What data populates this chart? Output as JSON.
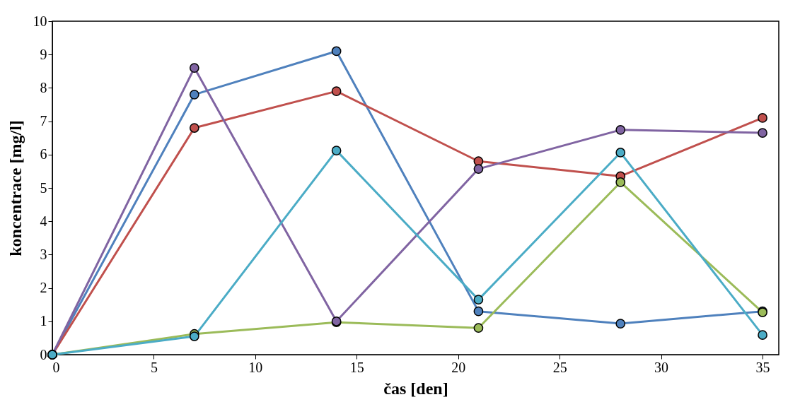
{
  "chart_data": {
    "type": "line",
    "xlabel": "čas [den]",
    "ylabel": "koncentrace [mg/l]",
    "x": [
      0,
      7,
      14,
      21,
      28,
      35
    ],
    "series": [
      {
        "color": "#4f81bd",
        "values": [
          0,
          7.8,
          9.1,
          1.3,
          0.93,
          1.3
        ]
      },
      {
        "color": "#c0504d",
        "values": [
          0,
          6.8,
          7.9,
          5.8,
          5.35,
          7.1
        ]
      },
      {
        "color": "#9bbb59",
        "values": [
          0,
          0.62,
          0.97,
          0.8,
          5.17,
          1.27
        ]
      },
      {
        "color": "#8064a2",
        "values": [
          0,
          8.6,
          1.0,
          5.57,
          6.74,
          6.65
        ]
      },
      {
        "color": "#4bacc6",
        "values": [
          0,
          0.55,
          6.12,
          1.65,
          6.06,
          0.59
        ]
      }
    ],
    "xlim": [
      0,
      35.8
    ],
    "xticks": [
      0,
      5,
      10,
      15,
      20,
      25,
      30,
      35
    ],
    "ylim": [
      0,
      10
    ],
    "yticks": [
      0,
      1,
      2,
      3,
      4,
      5,
      6,
      7,
      8,
      9,
      10
    ],
    "marker": "circle",
    "grid": false,
    "legend": false
  }
}
